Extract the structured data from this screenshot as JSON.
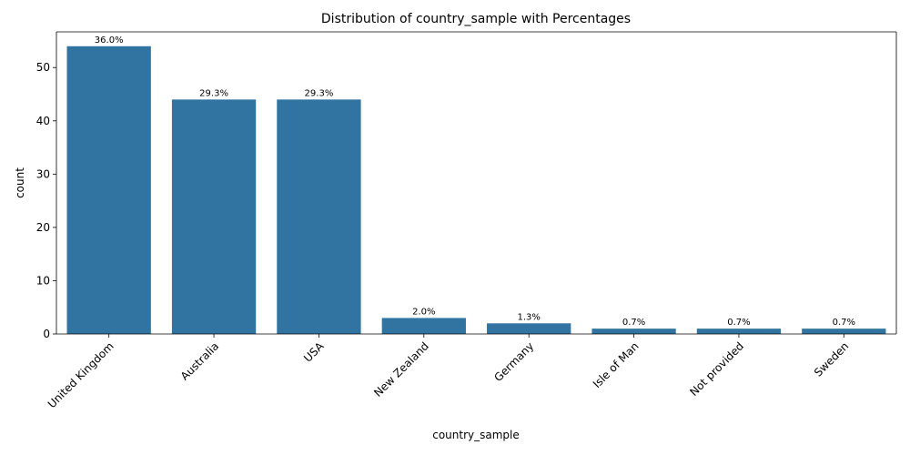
{
  "chart_data": {
    "type": "bar",
    "title": "Distribution of country_sample with Percentages",
    "xlabel": "country_sample",
    "ylabel": "count",
    "categories": [
      "United Kingdom",
      "Australia",
      "USA",
      "New Zealand",
      "Germany",
      "Isle of Man",
      "Not provided",
      "Sweden"
    ],
    "values": [
      54,
      44,
      44,
      3,
      2,
      1,
      1,
      1
    ],
    "data_labels": [
      "36.0%",
      "29.3%",
      "29.3%",
      "2.0%",
      "1.3%",
      "0.7%",
      "0.7%",
      "0.7%"
    ],
    "yticks": [
      0,
      10,
      20,
      30,
      40,
      50
    ],
    "ylim": [
      0,
      56.7
    ],
    "bar_color": "#3274a1",
    "grid": false,
    "x_tick_rotation": 45
  }
}
